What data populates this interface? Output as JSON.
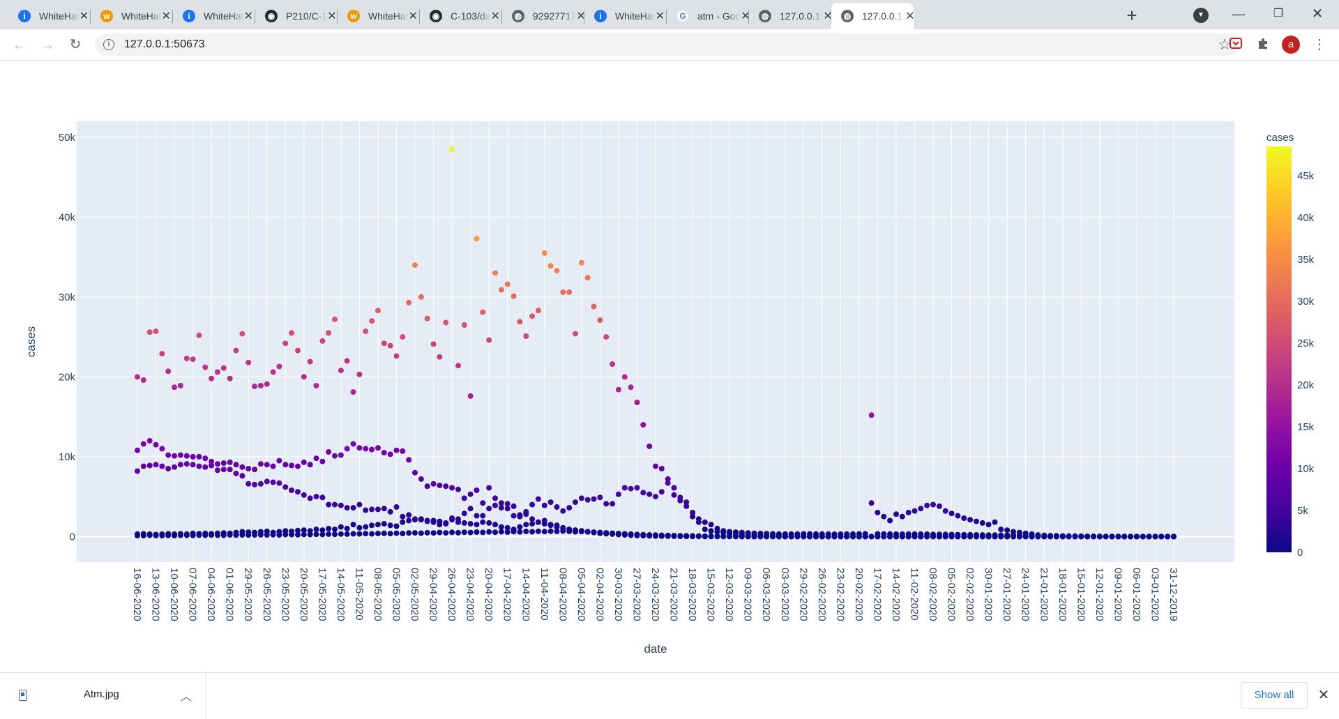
{
  "browser": {
    "tabs": [
      {
        "title": "WhiteHat",
        "icon": "whitehat-icon"
      },
      {
        "title": "WhiteHat",
        "icon": "w-logo-icon"
      },
      {
        "title": "WhiteHat",
        "icon": "whitehat-icon"
      },
      {
        "title": "P210/C-1",
        "icon": "github-icon"
      },
      {
        "title": "WhiteHat",
        "icon": "w-logo-icon"
      },
      {
        "title": "C-103/da",
        "icon": "github-icon"
      },
      {
        "title": "92927717",
        "icon": "globe-icon"
      },
      {
        "title": "WhiteHat",
        "icon": "whitehat-icon"
      },
      {
        "title": "atm - Goo",
        "icon": "google-icon"
      },
      {
        "title": "127.0.0.1:",
        "icon": "globe-icon"
      },
      {
        "title": "127.0.0.1:",
        "icon": "globe-icon",
        "active": true
      }
    ],
    "url": "127.0.0.1:50673",
    "profile_initial": "a"
  },
  "download_bar": {
    "file_name": "Atm.jpg",
    "show_all_label": "Show all"
  },
  "chart_data": {
    "type": "scatter",
    "xlabel": "date",
    "ylabel": "cases",
    "colorbar_title": "cases",
    "y_ticks": [
      0,
      10000,
      20000,
      30000,
      40000,
      50000
    ],
    "y_tick_labels": [
      "0",
      "10k",
      "20k",
      "30k",
      "40k",
      "50k"
    ],
    "ylim": [
      -3200,
      52000
    ],
    "colorbar_range": [
      0,
      48500
    ],
    "colorbar_ticks": [
      0,
      5000,
      10000,
      15000,
      20000,
      25000,
      30000,
      35000,
      40000,
      45000
    ],
    "colorbar_tick_labels": [
      "0",
      "5k",
      "10k",
      "15k",
      "20k",
      "25k",
      "30k",
      "35k",
      "40k",
      "45k"
    ],
    "colorscale": [
      "#0d0887",
      "#46039f",
      "#7201a8",
      "#9c179e",
      "#bd3786",
      "#d8576b",
      "#ed7953",
      "#fb9f3a",
      "#fdca26",
      "#f0f921"
    ],
    "x_tick_labels": [
      "16-06-2020",
      "13-06-2020",
      "10-06-2020",
      "07-06-2020",
      "04-06-2020",
      "01-06-2020",
      "29-05-2020",
      "26-05-2020",
      "23-05-2020",
      "20-05-2020",
      "17-05-2020",
      "14-05-2020",
      "11-05-2020",
      "08-05-2020",
      "05-05-2020",
      "02-05-2020",
      "29-04-2020",
      "26-04-2020",
      "23-04-2020",
      "20-04-2020",
      "17-04-2020",
      "14-04-2020",
      "11-04-2020",
      "08-04-2020",
      "05-04-2020",
      "02-04-2020",
      "30-03-2020",
      "27-03-2020",
      "24-03-2020",
      "21-03-2020",
      "18-03-2020",
      "15-03-2020",
      "12-03-2020",
      "09-03-2020",
      "06-03-2020",
      "03-03-2020",
      "29-02-2020",
      "26-02-2020",
      "23-02-2020",
      "20-02-2020",
      "17-02-2020",
      "14-02-2020",
      "11-02-2020",
      "08-02-2020",
      "05-02-2020",
      "02-02-2020",
      "30-01-2020",
      "27-01-2020",
      "24-01-2020",
      "21-01-2020",
      "18-01-2020",
      "15-01-2020",
      "12-01-2020",
      "09-01-2020",
      "06-01-2020",
      "03-01-2020",
      "31-12-2019"
    ],
    "dates_newest_to_oldest": {
      "first": "16-06-2020",
      "last": "31-12-2019",
      "count": 169
    },
    "series": [
      {
        "values": [
          20000,
          19600,
          25600,
          25700,
          22900,
          20700,
          18700,
          18900,
          22300,
          22200,
          25200,
          21200,
          19800,
          20600,
          21100,
          19800,
          23300,
          25400,
          21800,
          18800,
          18900,
          19100,
          20600,
          21300,
          24200,
          25500,
          23300,
          20000,
          21900,
          18900,
          24500,
          25500,
          27200,
          20800,
          22000,
          18100,
          20300,
          25700,
          27000,
          28300,
          24200,
          23900,
          22600,
          25000,
          29300,
          34000,
          30000,
          27300,
          24100,
          22500,
          26800,
          48500,
          21400,
          26500,
          17600,
          37300,
          28100,
          24600,
          33000,
          30900,
          31600,
          30100,
          26900,
          25100,
          27600,
          28300,
          35500,
          33900,
          33300,
          30600,
          30600,
          25400,
          34300,
          32400,
          28800,
          27100,
          25000,
          21600,
          18400,
          20000,
          18700,
          16800,
          14000,
          11300,
          8800,
          8500,
          7200,
          6100,
          4900,
          3800,
          3000,
          2200,
          1800,
          1500,
          1000,
          700,
          600,
          550,
          500,
          450,
          400,
          380,
          360,
          340,
          320,
          310,
          300,
          320,
          340,
          330,
          320,
          310,
          300,
          290,
          300,
          310,
          320,
          330,
          340,
          15200,
          330,
          320,
          310,
          300,
          290,
          300,
          310,
          300,
          290,
          280,
          270,
          260,
          250,
          240,
          230,
          220,
          210,
          200,
          190,
          180,
          170,
          160,
          150,
          140,
          130,
          120,
          110,
          100,
          90,
          80,
          70,
          60,
          50,
          40,
          30,
          20,
          10,
          5,
          0,
          0,
          0,
          0,
          0,
          0,
          0,
          0,
          0,
          0,
          0,
          0,
          0,
          0,
          0
        ]
      },
      {
        "values": [
          10800,
          11600,
          12000,
          11500,
          11000,
          10200,
          10100,
          10200,
          10100,
          10000,
          10000,
          9800,
          9400,
          9100,
          9200,
          9300,
          9000,
          8700,
          8500,
          8400,
          9100,
          9000,
          8800,
          9500,
          9000,
          8900,
          8800,
          9300,
          9000,
          9800,
          9400,
          10600,
          10100,
          10200,
          11000,
          11600,
          11100,
          11000,
          10900,
          11100,
          10500,
          10300,
          10800,
          10700,
          9600,
          8000,
          7200,
          6300,
          6600,
          6400,
          6300,
          6100,
          5900,
          4800,
          5300,
          5800,
          4200,
          6100,
          4800,
          4200,
          4100,
          3800,
          2700,
          3100,
          4000,
          4700,
          3900,
          4300,
          3700,
          3200,
          3600,
          4300,
          4800,
          4600,
          4700,
          4900,
          4100,
          4100,
          5300,
          6100,
          6000,
          6100,
          5500,
          5300,
          5000,
          5600,
          6700,
          5200,
          4500,
          4300,
          2500,
          1800,
          900,
          700,
          600,
          500,
          400,
          300,
          250,
          200,
          150,
          120,
          100,
          90,
          80,
          70,
          60,
          50,
          40,
          30,
          20,
          15,
          10,
          8,
          6,
          5,
          4,
          3,
          3,
          4200,
          3000,
          2500,
          2000,
          2800,
          2500,
          3000,
          3200,
          3500,
          3900,
          4000,
          3800,
          3200,
          2900,
          2600,
          2300,
          2100,
          1900,
          1700,
          1500,
          1800,
          900,
          800,
          600,
          500,
          400,
          300,
          200,
          150,
          100,
          80,
          60,
          40,
          30,
          20,
          15,
          10,
          5,
          3,
          2,
          1,
          0,
          0,
          0,
          0,
          0,
          0,
          0,
          0,
          0,
          0
        ]
      },
      {
        "values": [
          8200,
          8800,
          8900,
          9000,
          8800,
          8500,
          8700,
          9000,
          9100,
          9000,
          8800,
          8700,
          8900,
          8300,
          8400,
          8400,
          7900,
          7600,
          6600,
          6500,
          6600,
          6900,
          6800,
          6700,
          6200,
          5800,
          5600,
          5200,
          4800,
          5000,
          4900,
          4000,
          4000,
          3900,
          3600,
          3600,
          4000,
          3300,
          3400,
          3400,
          3500,
          3100,
          3700,
          2500,
          2700,
          2100,
          2200,
          2000,
          2000,
          1900,
          1700,
          2100,
          2200,
          2900,
          3500,
          2600,
          2600,
          3500,
          3900,
          3600,
          3500,
          2600,
          2500,
          2800,
          2200,
          1800,
          1600,
          1400,
          1200,
          1000,
          900,
          800,
          700,
          600,
          550,
          500,
          450,
          400,
          350,
          300,
          280,
          250,
          220,
          200,
          180,
          160,
          140,
          120,
          100,
          90,
          80,
          70,
          60,
          50,
          40,
          35,
          30,
          25,
          20,
          18,
          15,
          12,
          10,
          8,
          6,
          5,
          4,
          3,
          2,
          1,
          1,
          1,
          1,
          1,
          1,
          1,
          1,
          1,
          1,
          1,
          1,
          1,
          1,
          1,
          1,
          1,
          1,
          1,
          1,
          1,
          1,
          1,
          1,
          1,
          1,
          1,
          1,
          1,
          1,
          1,
          1,
          1,
          1,
          1,
          1,
          1,
          1,
          1,
          1,
          1,
          1,
          1,
          1,
          1,
          1,
          1,
          1,
          1,
          1,
          1,
          1,
          1,
          1,
          1,
          1,
          1,
          1,
          1,
          1
        ]
      },
      {
        "values": [
          300,
          350,
          300,
          250,
          300,
          350,
          300,
          350,
          300,
          400,
          350,
          400,
          350,
          400,
          450,
          400,
          500,
          600,
          550,
          500,
          600,
          650,
          500,
          600,
          700,
          650,
          750,
          800,
          700,
          900,
          800,
          1000,
          900,
          1200,
          1000,
          1500,
          1100,
          1200,
          1400,
          1500,
          1600,
          1400,
          1300,
          1800,
          2000,
          2200,
          2100,
          1900,
          1800,
          1500,
          1600,
          2300,
          1800,
          1700,
          1600,
          1500,
          1800,
          1700,
          1500,
          1200,
          1100,
          900,
          1200,
          1500,
          1600,
          1800,
          2000,
          1500,
          1400,
          1100,
          900,
          800,
          700,
          600,
          500,
          400,
          350,
          300,
          250,
          200,
          150,
          120,
          100,
          80,
          60,
          50,
          40,
          30,
          20,
          15,
          12,
          10,
          8,
          6,
          5,
          4,
          3,
          2,
          1,
          1,
          1,
          1,
          1,
          1,
          1,
          1,
          1,
          1,
          1,
          1,
          1,
          1,
          1,
          1,
          1,
          1,
          1,
          1,
          1,
          1,
          1,
          1,
          1,
          1,
          1,
          1,
          1,
          1,
          1,
          1,
          1,
          1,
          1,
          1,
          1,
          1,
          1,
          1,
          1,
          1,
          1,
          1,
          1,
          1,
          1,
          1,
          1,
          1,
          1,
          1,
          1,
          1,
          1,
          1,
          1,
          1,
          1,
          1,
          1,
          1,
          1,
          1,
          1,
          1,
          1,
          1,
          1,
          1,
          1,
          1,
          1,
          1,
          1,
          1
        ]
      },
      {
        "values": [
          120,
          110,
          150,
          130,
          110,
          140,
          120,
          160,
          150,
          140,
          170,
          150,
          190,
          170,
          160,
          200,
          180,
          210,
          190,
          200,
          220,
          210,
          230,
          200,
          240,
          250,
          220,
          260,
          240,
          280,
          260,
          300,
          280,
          320,
          300,
          350,
          330,
          360,
          340,
          380,
          400,
          360,
          420,
          380,
          440,
          460,
          420,
          480,
          450,
          500,
          460,
          520,
          480,
          540,
          500,
          560,
          520,
          580,
          540,
          600,
          560,
          620,
          580,
          640,
          600,
          650,
          620,
          660,
          640,
          680,
          650,
          600,
          620,
          580,
          540,
          500,
          460,
          420,
          380,
          340,
          300,
          260,
          220,
          180,
          150,
          120,
          100,
          80,
          60,
          40,
          30,
          20,
          15,
          10,
          8,
          6,
          5,
          4,
          3,
          2,
          1,
          1,
          1,
          1,
          1,
          1,
          1,
          1,
          1,
          1,
          1,
          1,
          1,
          1,
          1,
          1,
          1,
          1,
          1,
          1,
          1,
          1,
          1,
          1,
          1,
          1,
          1,
          1,
          1,
          1,
          1,
          1,
          1,
          1,
          1,
          1,
          1,
          1,
          1,
          1,
          1,
          1,
          1,
          1,
          1,
          1,
          1,
          1,
          1,
          1,
          1,
          1,
          1,
          1,
          1,
          1,
          1,
          1,
          1,
          1,
          1,
          1,
          1,
          1,
          1,
          1,
          1,
          1,
          1
        ]
      }
    ]
  }
}
